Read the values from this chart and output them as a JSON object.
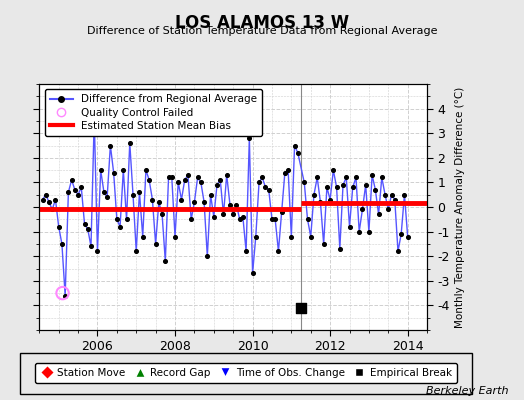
{
  "title": "LOS ALAMOS 13 W",
  "subtitle": "Difference of Station Temperature Data from Regional Average",
  "ylabel": "Monthly Temperature Anomaly Difference (°C)",
  "ylim": [
    -5,
    5
  ],
  "yticks": [
    -4,
    -3,
    -2,
    -1,
    0,
    1,
    2,
    3,
    4
  ],
  "background_color": "#e8e8e8",
  "plot_bg_color": "#ffffff",
  "grid_color": "#d0d0d0",
  "berkeley_earth_label": "Berkeley Earth",
  "x_start_year": 2004.5,
  "x_end_year": 2014.5,
  "xtick_years": [
    2006,
    2008,
    2010,
    2012,
    2014
  ],
  "bias_before": -0.1,
  "bias_after": 0.15,
  "break_year": 2011.25,
  "qc_fail_year": 2005.1,
  "qc_fail_value": -3.5,
  "empirical_break_year": 2011.25,
  "empirical_break_value": -4.1,
  "time_series": [
    [
      2004.583,
      0.3
    ],
    [
      2004.667,
      0.5
    ],
    [
      2004.75,
      0.2
    ],
    [
      2004.833,
      -0.1
    ],
    [
      2004.917,
      0.3
    ],
    [
      2005.0,
      -0.8
    ],
    [
      2005.083,
      -1.5
    ],
    [
      2005.167,
      -3.6
    ],
    [
      2005.25,
      0.6
    ],
    [
      2005.333,
      1.1
    ],
    [
      2005.417,
      0.7
    ],
    [
      2005.5,
      0.5
    ],
    [
      2005.583,
      0.8
    ],
    [
      2005.667,
      -0.7
    ],
    [
      2005.75,
      -0.9
    ],
    [
      2005.833,
      -1.6
    ],
    [
      2005.917,
      3.6
    ],
    [
      2006.0,
      -1.8
    ],
    [
      2006.083,
      1.5
    ],
    [
      2006.167,
      0.6
    ],
    [
      2006.25,
      0.4
    ],
    [
      2006.333,
      2.5
    ],
    [
      2006.417,
      1.4
    ],
    [
      2006.5,
      -0.5
    ],
    [
      2006.583,
      -0.8
    ],
    [
      2006.667,
      1.5
    ],
    [
      2006.75,
      -0.5
    ],
    [
      2006.833,
      2.6
    ],
    [
      2006.917,
      0.5
    ],
    [
      2007.0,
      -1.8
    ],
    [
      2007.083,
      0.6
    ],
    [
      2007.167,
      -1.2
    ],
    [
      2007.25,
      1.5
    ],
    [
      2007.333,
      1.1
    ],
    [
      2007.417,
      0.3
    ],
    [
      2007.5,
      -1.5
    ],
    [
      2007.583,
      0.2
    ],
    [
      2007.667,
      -0.3
    ],
    [
      2007.75,
      -2.2
    ],
    [
      2007.833,
      1.2
    ],
    [
      2007.917,
      1.2
    ],
    [
      2008.0,
      -1.2
    ],
    [
      2008.083,
      1.0
    ],
    [
      2008.167,
      0.3
    ],
    [
      2008.25,
      1.1
    ],
    [
      2008.333,
      1.3
    ],
    [
      2008.417,
      -0.5
    ],
    [
      2008.5,
      0.2
    ],
    [
      2008.583,
      1.2
    ],
    [
      2008.667,
      1.0
    ],
    [
      2008.75,
      0.2
    ],
    [
      2008.833,
      -2.0
    ],
    [
      2008.917,
      0.5
    ],
    [
      2009.0,
      -0.4
    ],
    [
      2009.083,
      0.9
    ],
    [
      2009.167,
      1.1
    ],
    [
      2009.25,
      -0.3
    ],
    [
      2009.333,
      1.3
    ],
    [
      2009.417,
      0.1
    ],
    [
      2009.5,
      -0.3
    ],
    [
      2009.583,
      0.1
    ],
    [
      2009.667,
      -0.5
    ],
    [
      2009.75,
      -0.4
    ],
    [
      2009.833,
      -1.8
    ],
    [
      2009.917,
      2.8
    ],
    [
      2010.0,
      -2.7
    ],
    [
      2010.083,
      -1.2
    ],
    [
      2010.167,
      1.0
    ],
    [
      2010.25,
      1.2
    ],
    [
      2010.333,
      0.8
    ],
    [
      2010.417,
      0.7
    ],
    [
      2010.5,
      -0.5
    ],
    [
      2010.583,
      -0.5
    ],
    [
      2010.667,
      -1.8
    ],
    [
      2010.75,
      -0.2
    ],
    [
      2010.833,
      1.4
    ],
    [
      2010.917,
      1.5
    ],
    [
      2011.0,
      -1.2
    ],
    [
      2011.083,
      2.5
    ],
    [
      2011.167,
      2.2
    ],
    [
      2011.333,
      1.0
    ],
    [
      2011.417,
      -0.5
    ],
    [
      2011.5,
      -1.2
    ],
    [
      2011.583,
      0.5
    ],
    [
      2011.667,
      1.2
    ],
    [
      2011.75,
      0.2
    ],
    [
      2011.833,
      -1.5
    ],
    [
      2011.917,
      0.8
    ],
    [
      2012.0,
      0.3
    ],
    [
      2012.083,
      1.5
    ],
    [
      2012.167,
      0.8
    ],
    [
      2012.25,
      -1.7
    ],
    [
      2012.333,
      0.9
    ],
    [
      2012.417,
      1.2
    ],
    [
      2012.5,
      -0.8
    ],
    [
      2012.583,
      0.8
    ],
    [
      2012.667,
      1.2
    ],
    [
      2012.75,
      -1.0
    ],
    [
      2012.833,
      -0.1
    ],
    [
      2012.917,
      0.9
    ],
    [
      2013.0,
      -1.0
    ],
    [
      2013.083,
      1.3
    ],
    [
      2013.167,
      0.7
    ],
    [
      2013.25,
      -0.3
    ],
    [
      2013.333,
      1.2
    ],
    [
      2013.417,
      0.5
    ],
    [
      2013.5,
      -0.1
    ],
    [
      2013.583,
      0.5
    ],
    [
      2013.667,
      0.3
    ],
    [
      2013.75,
      -1.8
    ],
    [
      2013.833,
      -1.1
    ],
    [
      2013.917,
      0.5
    ],
    [
      2014.0,
      -1.2
    ]
  ]
}
